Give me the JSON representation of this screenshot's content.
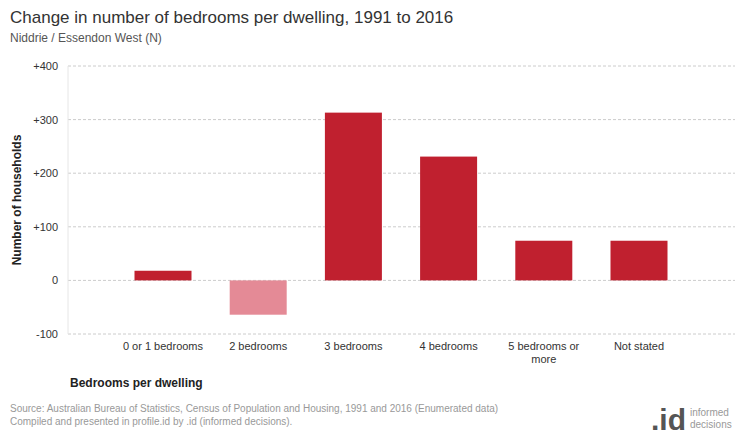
{
  "chart_data": {
    "type": "bar",
    "title": "Change in number of bedrooms per dwelling, 1991 to 2016",
    "subtitle": "Niddrie / Essendon West (N)",
    "x_label": "Bedrooms per dwelling",
    "y_label": "Number of households",
    "categories": [
      "0 or 1 bedrooms",
      "2 bedrooms",
      "3 bedrooms",
      "4 bedrooms",
      "5 bedrooms or more",
      "Not stated"
    ],
    "values": [
      18,
      -64,
      313,
      231,
      74,
      74
    ],
    "colors": [
      "#c0202f",
      "#e48a96",
      "#c0202f",
      "#c0202f",
      "#c0202f",
      "#c0202f"
    ],
    "ylim": [
      -100,
      400
    ],
    "yticks": [
      -100,
      0,
      {
        "value": 100,
        "label": "+100"
      },
      {
        "value": 200,
        "label": "+200"
      },
      {
        "value": 300,
        "label": "+300"
      },
      {
        "value": 400,
        "label": "+400"
      }
    ],
    "grid": true,
    "source": [
      "Source: Australian Bureau of Statistics, Census of Population and Housing, 1991 and 2016 (Enumerated data)",
      "Compiled and presented in profile.id by .id (informed decisions)."
    ],
    "brand": [
      ".id",
      "informed",
      "decisions"
    ]
  }
}
